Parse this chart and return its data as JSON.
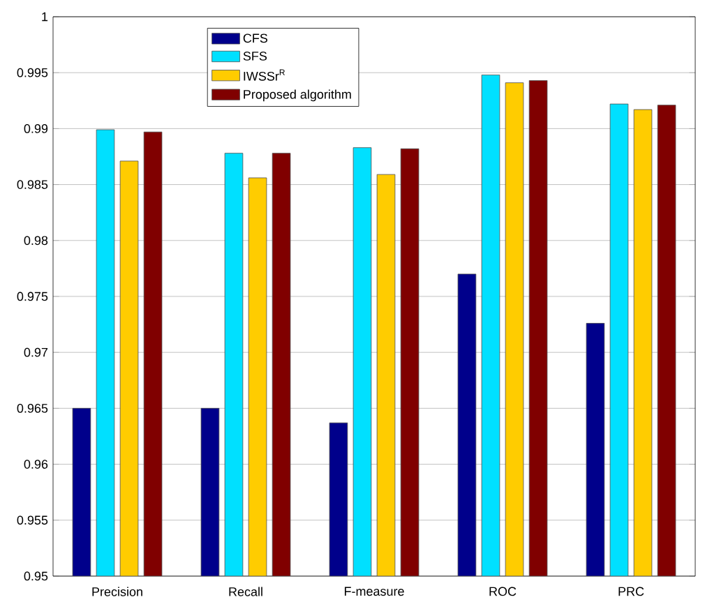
{
  "chart_data": {
    "type": "bar",
    "categories": [
      "Precision",
      "Recall",
      "F-measure",
      "ROC",
      "PRC"
    ],
    "series": [
      {
        "name": "CFS",
        "color": "#00008b",
        "values": [
          0.965,
          0.965,
          0.9637,
          0.977,
          0.9726
        ]
      },
      {
        "name": "SFS",
        "color": "#00e0ff",
        "values": [
          0.9899,
          0.9878,
          0.9883,
          0.9948,
          0.9922
        ]
      },
      {
        "name": "IWSSr$^{R}$",
        "color": "#ffcc00",
        "values": [
          0.9871,
          0.9856,
          0.9859,
          0.9941,
          0.9917
        ]
      },
      {
        "name": "Proposed algorithm",
        "color": "#800000",
        "values": [
          0.9897,
          0.9878,
          0.9882,
          0.9943,
          0.9921
        ]
      }
    ],
    "ylim": [
      0.95,
      1
    ],
    "yticks": [
      0.95,
      0.955,
      0.96,
      0.965,
      0.97,
      0.975,
      0.98,
      0.985,
      0.99,
      0.995,
      1
    ],
    "grid": "y",
    "legend": "top"
  }
}
